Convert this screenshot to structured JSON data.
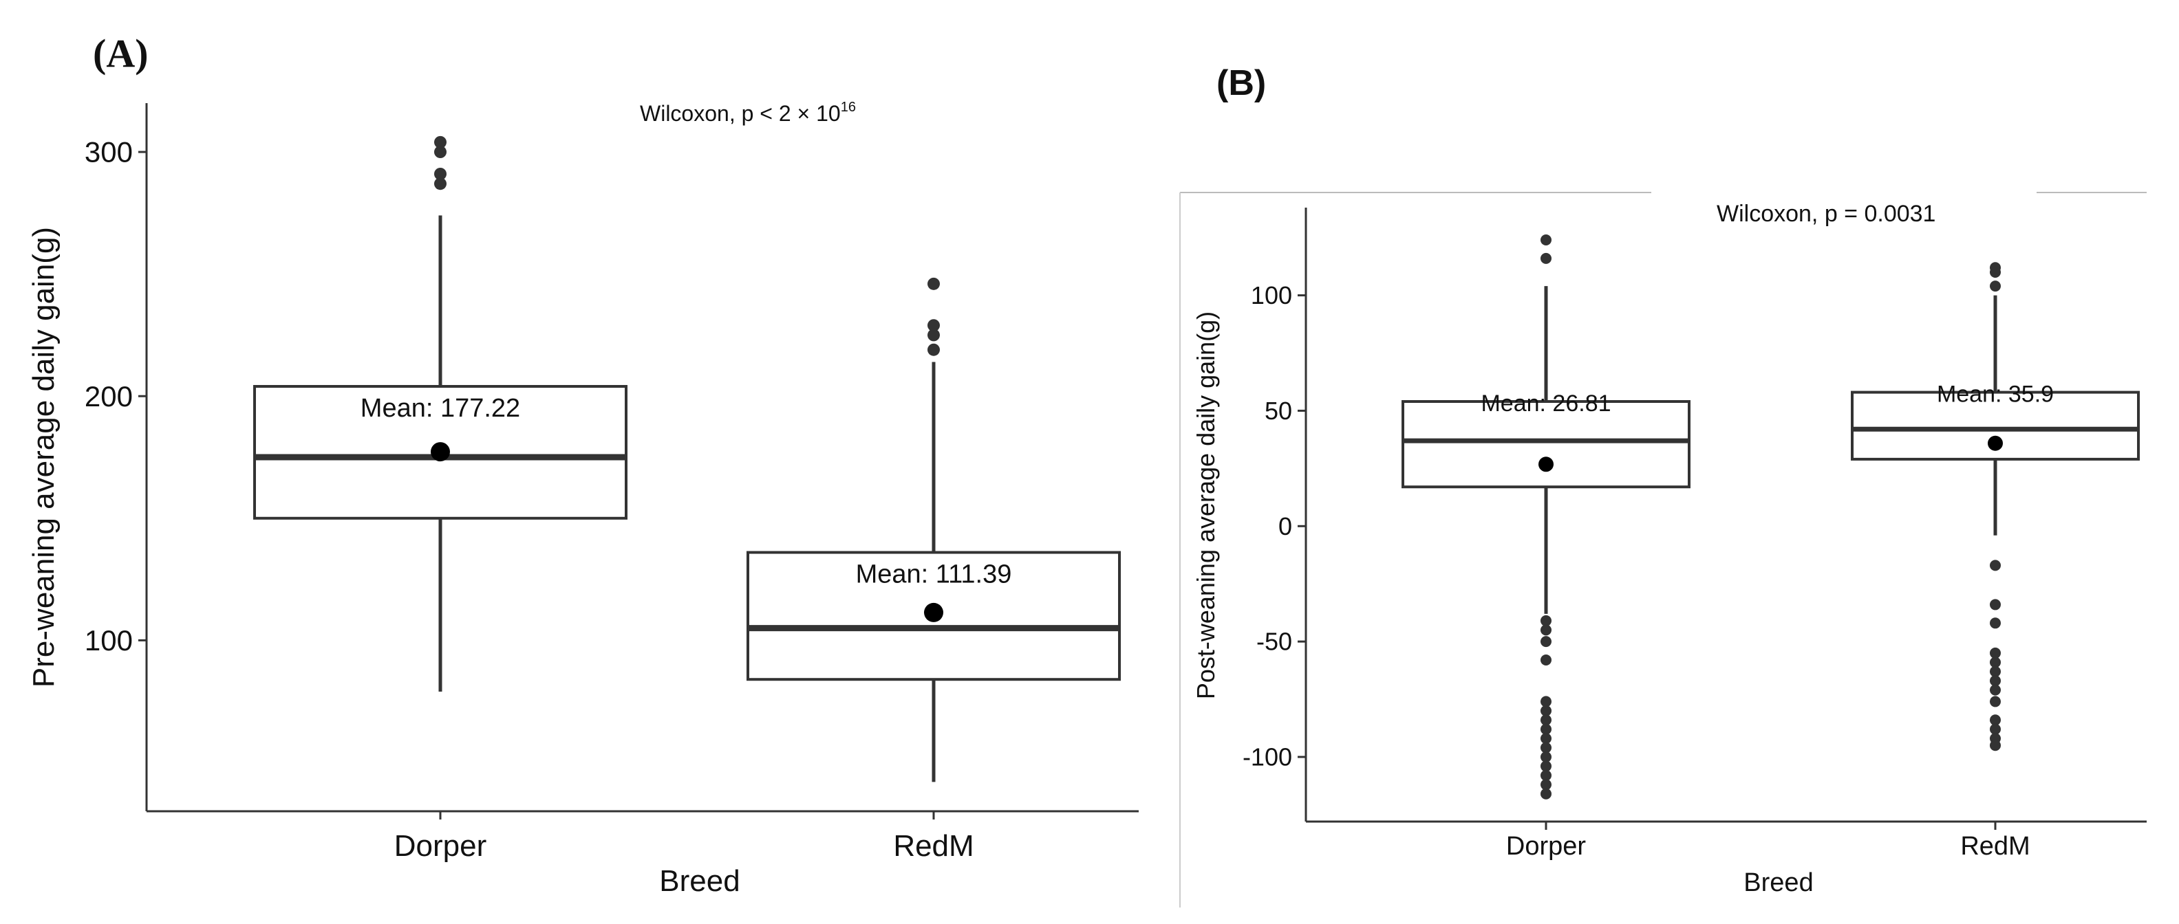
{
  "figure": {
    "panels": [
      {
        "label": "(A)"
      },
      {
        "label": "(B)"
      }
    ]
  },
  "chart_data": [
    {
      "type": "boxplot",
      "panel": "(A)",
      "xlabel": "Breed",
      "ylabel": "Pre-weaning average daily gain(g)",
      "ylim": [
        30,
        320
      ],
      "yticks": [
        100,
        200,
        300
      ],
      "ytick_labels": [
        "100",
        "200",
        "300"
      ],
      "categories": [
        "Dorper",
        "RedM"
      ],
      "test_text": "Wilcoxon, p <  2 × 10",
      "test_exponent": "16",
      "boxes": [
        {
          "category": "Dorper",
          "whisker_low": 79,
          "q1": 150,
          "median": 175,
          "q3": 204,
          "whisker_high": 274,
          "mean": 177.22,
          "mean_label": "Mean: 177.22",
          "outliers": [
            287,
            291,
            300,
            304
          ]
        },
        {
          "category": "RedM",
          "whisker_low": 42,
          "q1": 84,
          "median": 105,
          "q3": 136,
          "whisker_high": 214,
          "mean": 111.39,
          "mean_label": "Mean: 111.39",
          "outliers": [
            219,
            225,
            229,
            246
          ]
        }
      ]
    },
    {
      "type": "boxplot",
      "panel": "(B)",
      "xlabel": "Breed",
      "ylabel": "Post-weaning average daily gain(g)",
      "ylim": [
        -128,
        138
      ],
      "yticks": [
        -100,
        -50,
        0,
        50,
        100
      ],
      "ytick_labels": [
        "-100",
        "-50",
        "0",
        "50",
        "100"
      ],
      "categories": [
        "Dorper",
        "RedM"
      ],
      "test_text": "Wilcoxon, p = 0.0031",
      "boxes": [
        {
          "category": "Dorper",
          "whisker_low": -38,
          "q1": 17,
          "median": 37,
          "q3": 54,
          "whisker_high": 104,
          "mean": 26.81,
          "mean_label": "Mean: 26.81",
          "outliers": [
            116,
            124,
            -41,
            -45,
            -50,
            -58,
            -76,
            -80,
            -84,
            -88,
            -92,
            -96,
            -100,
            -104,
            -108,
            -112,
            -116
          ]
        },
        {
          "category": "RedM",
          "whisker_low": -4,
          "q1": 29,
          "median": 42,
          "q3": 58,
          "whisker_high": 100,
          "mean": 35.9,
          "mean_label": "Mean: 35.9",
          "outliers": [
            104,
            110,
            112,
            -17,
            -34,
            -42,
            -55,
            -59,
            -63,
            -67,
            -71,
            -76,
            -84,
            -88,
            -92,
            -95
          ]
        }
      ]
    }
  ]
}
